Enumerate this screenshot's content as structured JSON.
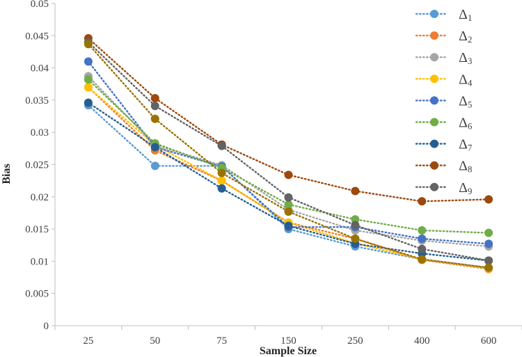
{
  "chart_data": {
    "type": "line",
    "title": "",
    "xlabel": "Sample Size",
    "ylabel": "Bias",
    "categories": [
      "25",
      "50",
      "75",
      "150",
      "250",
      "400",
      "600"
    ],
    "ylim": [
      0,
      0.05
    ],
    "yticks": [
      0,
      0.005,
      0.01,
      0.015,
      0.02,
      0.025,
      0.03,
      0.035,
      0.04,
      0.045,
      0.05
    ],
    "ytick_labels": [
      "0",
      "0.005",
      "0.01",
      "0.015",
      "0.02",
      "0.025",
      "0.03",
      "0.035",
      "0.04",
      "0.045",
      "0.05"
    ],
    "grid": false,
    "legend_position": "top-right",
    "line_style": "dotted",
    "series": [
      {
        "name": "Δ",
        "sub": "1",
        "color": "#5B9BD5",
        "values": [
          0.0342,
          0.0248,
          0.0248,
          0.015,
          0.0123,
          0.0103,
          0.009
        ]
      },
      {
        "name": "Δ",
        "sub": "2",
        "color": "#ED7D31",
        "values": [
          0.037,
          0.0272,
          0.0225,
          0.016,
          0.0135,
          0.0102,
          0.0088
        ]
      },
      {
        "name": "Δ",
        "sub": "3",
        "color": "#A5A5A5",
        "values": [
          0.0387,
          0.028,
          0.0249,
          0.018,
          0.0148,
          0.0132,
          0.0123
        ]
      },
      {
        "name": "Δ",
        "sub": "4",
        "color": "#FFC000",
        "values": [
          0.037,
          0.028,
          0.0225,
          0.016,
          0.0128,
          0.0103,
          0.0089
        ]
      },
      {
        "name": "Δ",
        "sub": "5",
        "color": "#4472C4",
        "values": [
          0.041,
          0.0277,
          0.0247,
          0.0153,
          0.0153,
          0.0135,
          0.0127
        ]
      },
      {
        "name": "Δ",
        "sub": "6",
        "color": "#70AD47",
        "values": [
          0.0382,
          0.0283,
          0.0245,
          0.0188,
          0.0165,
          0.0148,
          0.0144
        ]
      },
      {
        "name": "Δ",
        "sub": "7",
        "color": "#255E91",
        "values": [
          0.0346,
          0.0277,
          0.0213,
          0.0155,
          0.0127,
          0.0112,
          0.0101
        ]
      },
      {
        "name": "Δ",
        "sub": "8",
        "color": "#9E480E",
        "values": [
          0.0446,
          0.0353,
          0.0281,
          0.0234,
          0.0209,
          0.0193,
          0.0196
        ]
      },
      {
        "name": "Δ",
        "sub": "9",
        "color": "#636363",
        "values": [
          0.044,
          0.0341,
          0.0279,
          0.0199,
          0.0156,
          0.0119,
          0.0101
        ]
      },
      {
        "name": "",
        "sub": "",
        "color": "#997300",
        "values": [
          0.0437,
          0.0321,
          0.0237,
          0.0177,
          0.0135,
          0.0103,
          0.009
        ]
      }
    ]
  }
}
